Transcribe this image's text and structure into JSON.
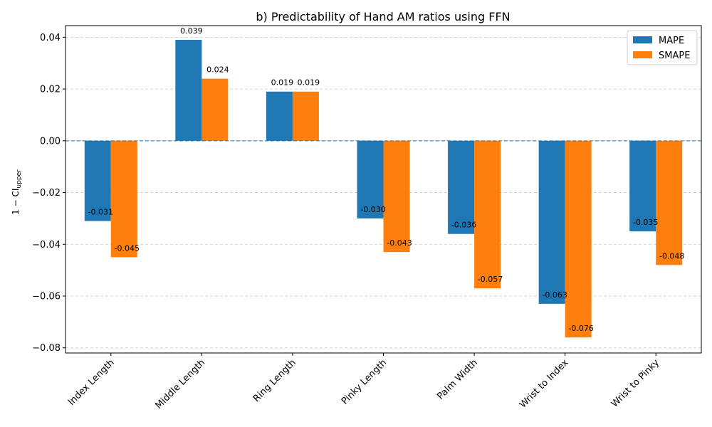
{
  "chart_data": {
    "type": "bar",
    "title": "b) Predictability of Hand AM ratios using FFN",
    "xlabel": "",
    "ylabel": "1 − CI",
    "ylabel_subscript": "upper",
    "categories": [
      "Index Length",
      "Middle Length",
      "Ring Length",
      "Pinky Length",
      "Palm Width",
      "Wrist to Index",
      "Wrist to Pinky"
    ],
    "series": [
      {
        "name": "MAPE",
        "color": "#1f77b4",
        "values": [
          -0.031,
          0.039,
          0.019,
          -0.03,
          -0.036,
          -0.063,
          -0.035
        ],
        "labels": [
          "-0.031",
          "0.039",
          "0.019",
          "-0.030",
          "-0.036",
          "-0.063",
          "-0.035"
        ]
      },
      {
        "name": "SMAPE",
        "color": "#ff7f0e",
        "values": [
          -0.045,
          0.024,
          0.019,
          -0.043,
          -0.057,
          -0.076,
          -0.048
        ],
        "labels": [
          "-0.045",
          "0.024",
          "0.019",
          "-0.043",
          "-0.057",
          "-0.076",
          "-0.048"
        ]
      }
    ],
    "ylim": [
      -0.082,
      0.0445
    ],
    "yticks": [
      -0.08,
      -0.06,
      -0.04,
      -0.02,
      0.0,
      0.02,
      0.04
    ],
    "ytick_labels": [
      "−0.08",
      "−0.06",
      "−0.04",
      "−0.02",
      "0.00",
      "0.02",
      "0.04"
    ],
    "grid": true,
    "zero_line": true,
    "legend_position": "top-right"
  }
}
